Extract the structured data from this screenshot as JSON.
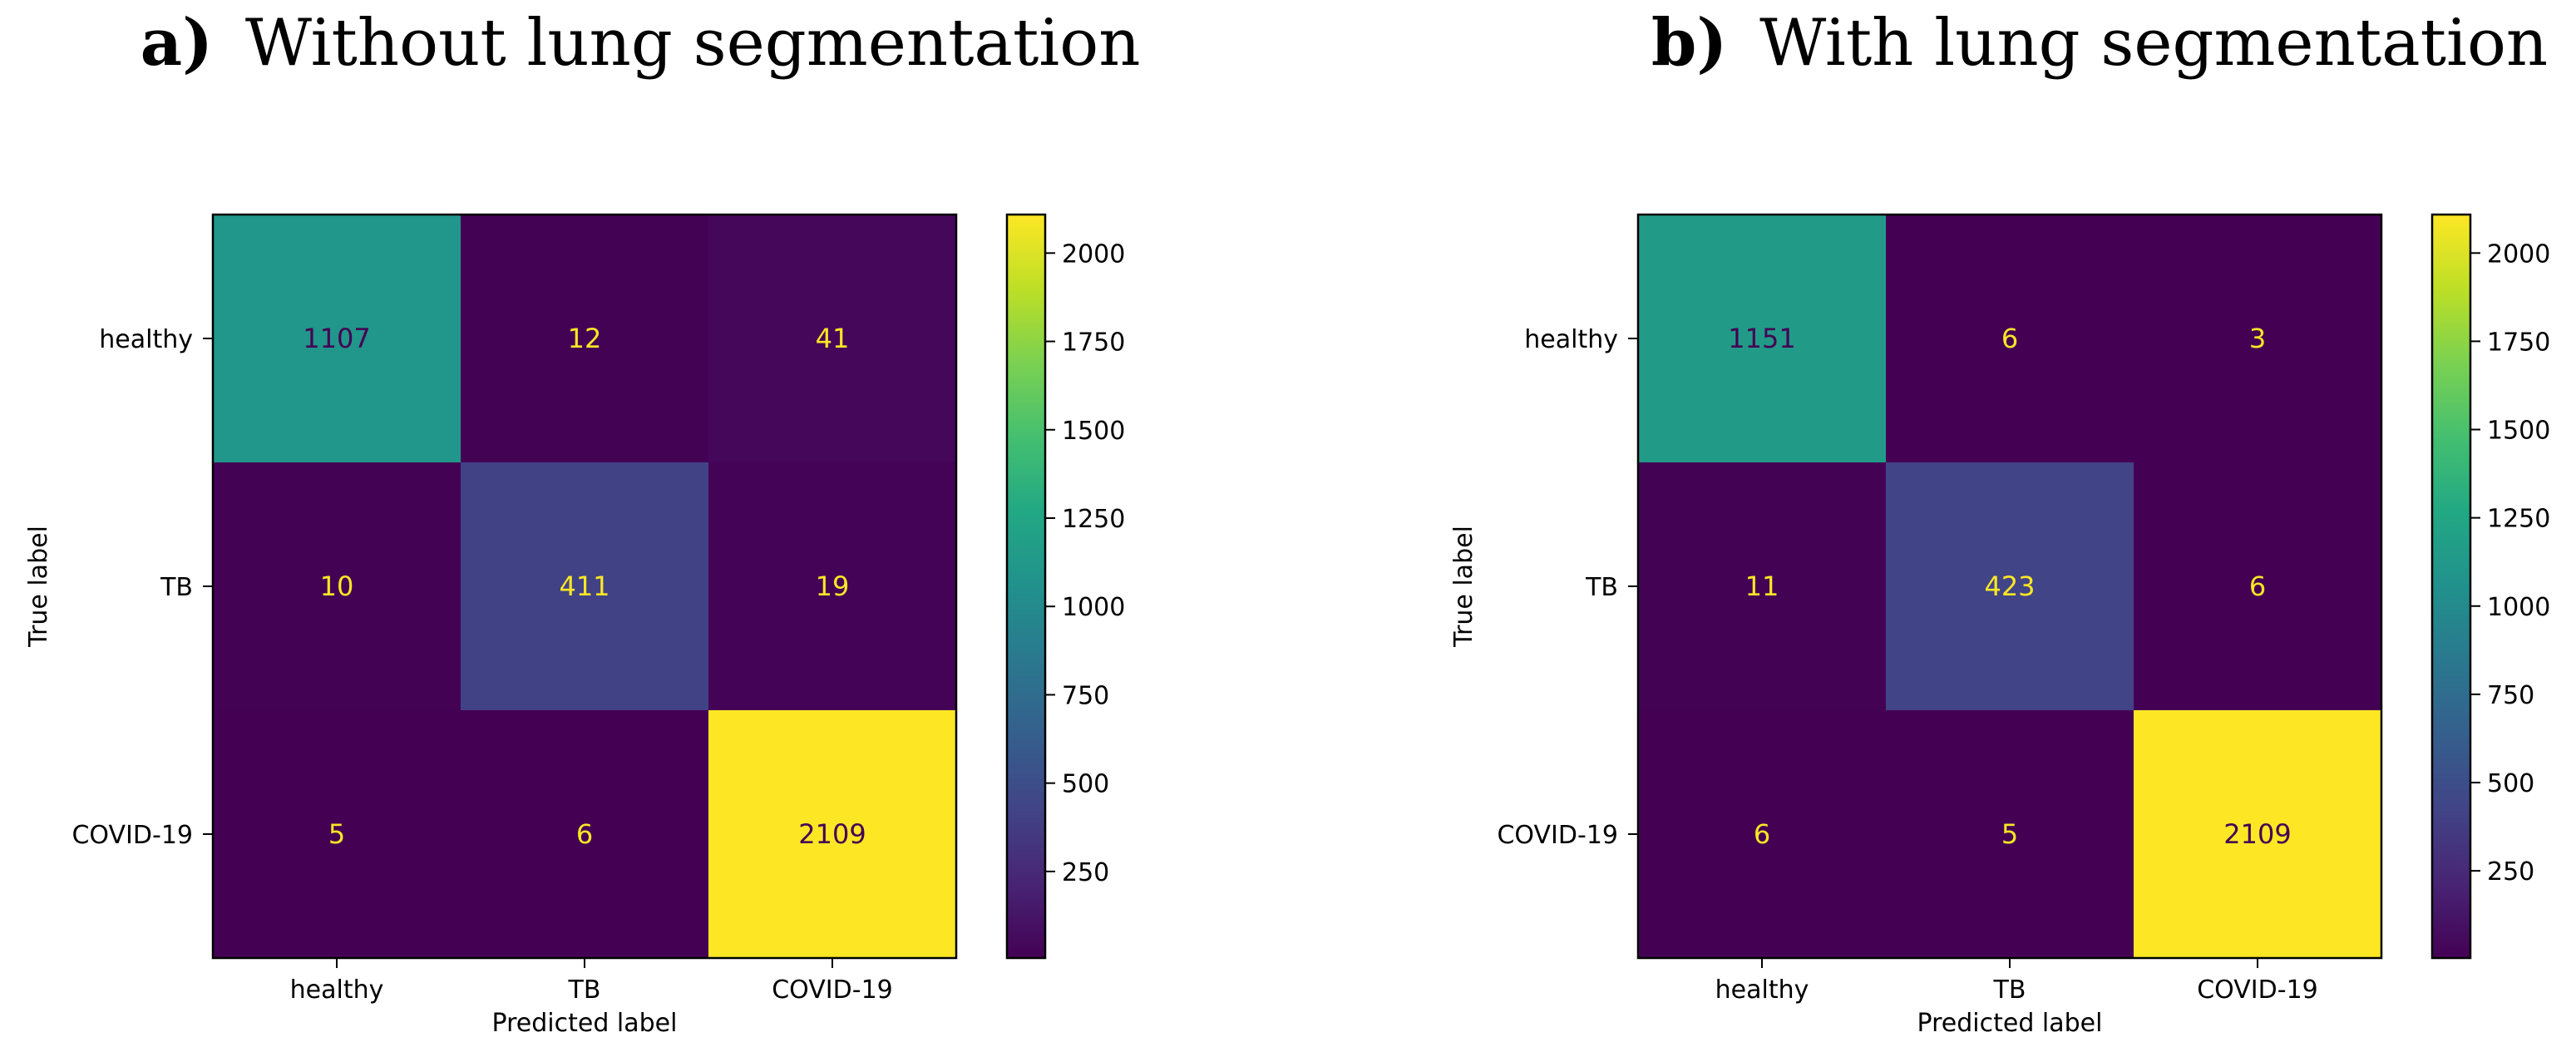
{
  "chart_data": [
    {
      "type": "heatmap",
      "title_prefix": "a)",
      "title": "Without lung segmentation",
      "xlabel": "Predicted label",
      "ylabel": "True label",
      "x_categories": [
        "healthy",
        "TB",
        "COVID-19"
      ],
      "y_categories": [
        "healthy",
        "TB",
        "COVID-19"
      ],
      "values": [
        [
          1107,
          12,
          41
        ],
        [
          10,
          411,
          19
        ],
        [
          5,
          6,
          2109
        ]
      ],
      "colormap": "viridis",
      "colorbar": {
        "min": 5,
        "max": 2109,
        "ticks": [
          250,
          500,
          750,
          1000,
          1250,
          1500,
          1750,
          2000
        ]
      },
      "grid": false,
      "legend": "none"
    },
    {
      "type": "heatmap",
      "title_prefix": "b)",
      "title": "With lung segmentation",
      "xlabel": "Predicted label",
      "ylabel": "True label",
      "x_categories": [
        "healthy",
        "TB",
        "COVID-19"
      ],
      "y_categories": [
        "healthy",
        "TB",
        "COVID-19"
      ],
      "values": [
        [
          1151,
          6,
          3
        ],
        [
          11,
          423,
          6
        ],
        [
          6,
          5,
          2109
        ]
      ],
      "colormap": "viridis",
      "colorbar": {
        "min": 3,
        "max": 2109,
        "ticks": [
          250,
          500,
          750,
          1000,
          1250,
          1500,
          1750,
          2000
        ]
      },
      "grid": false,
      "legend": "none"
    }
  ],
  "colors": {
    "viridis_low": "#440154",
    "viridis_high": "#fde725",
    "text_on_dark": "#fde725",
    "text_on_light": "#440154"
  }
}
